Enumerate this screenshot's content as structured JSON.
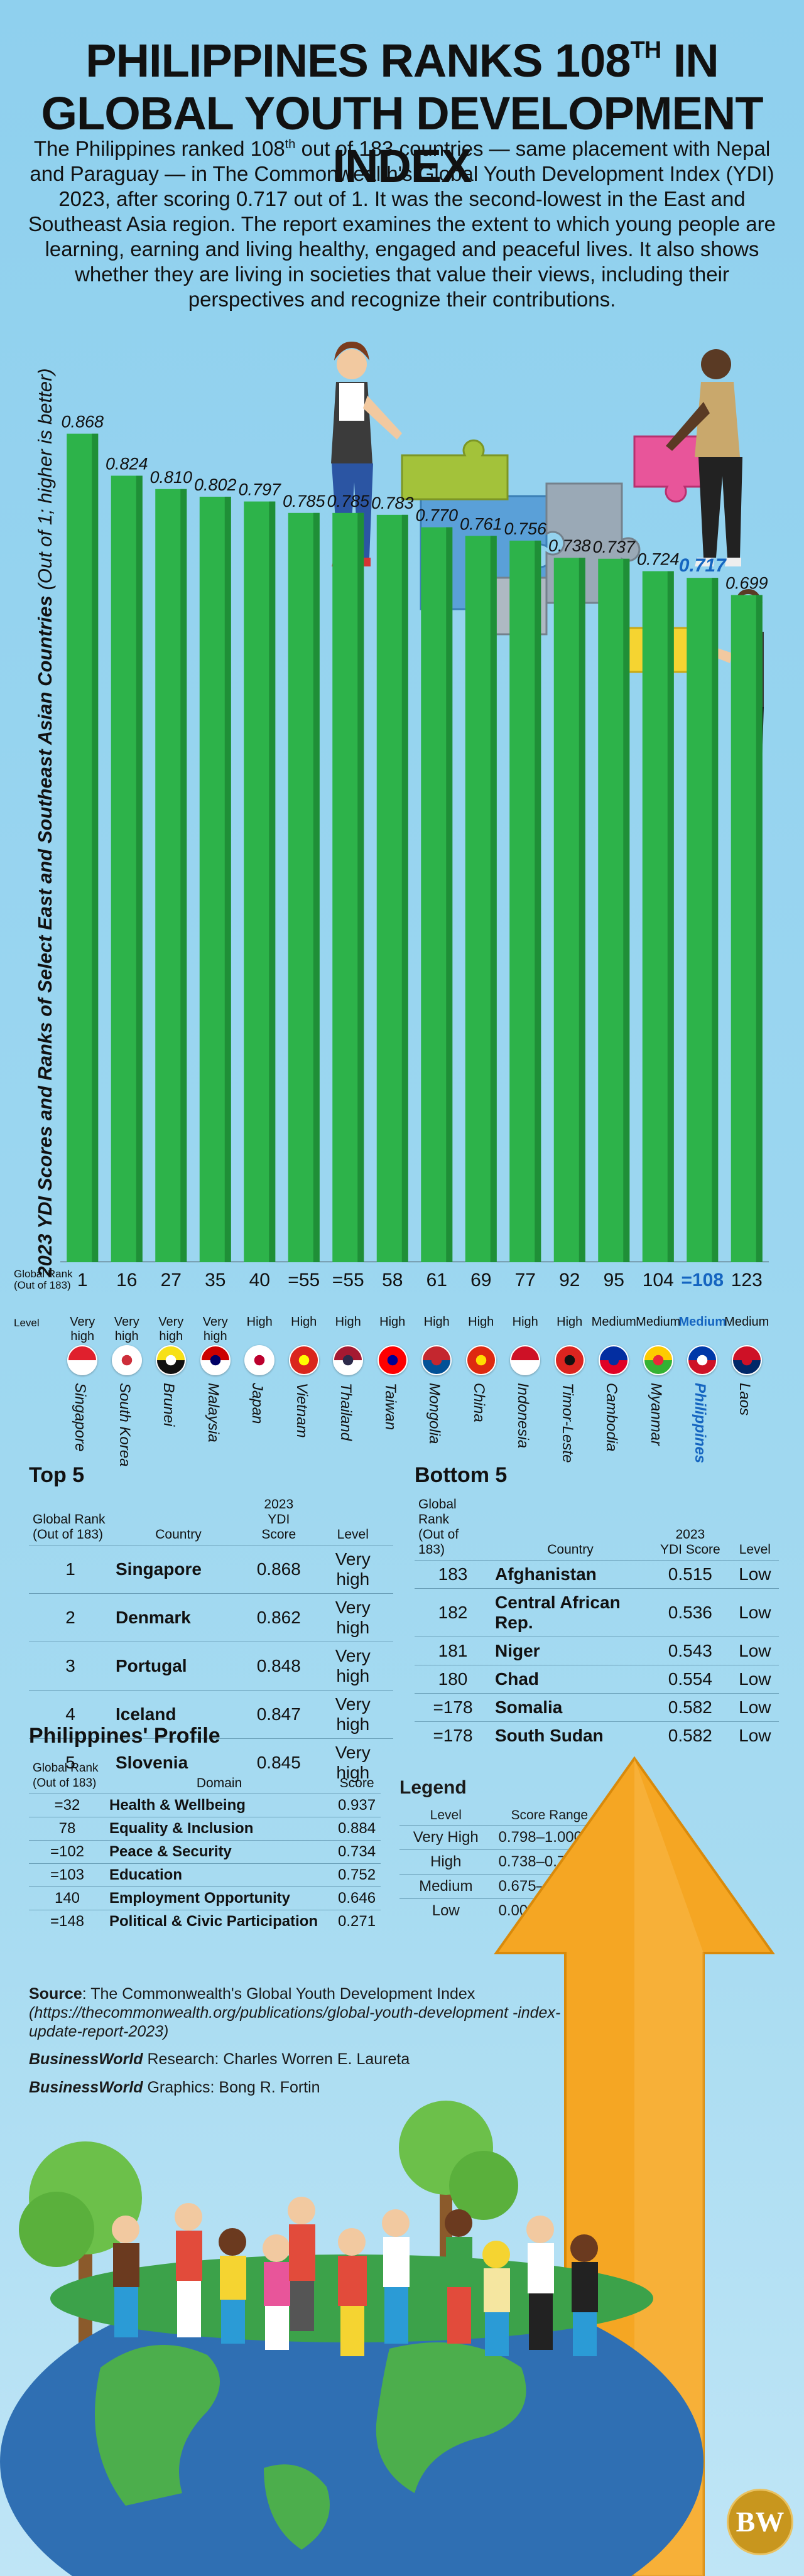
{
  "header": {
    "title_line1": "PHILIPPINES RANKS 108",
    "title_sup": "TH",
    "title_line1_end": " IN",
    "title_line2": "GLOBAL YOUTH DEVELOPMENT INDEX",
    "intro_part1": "The Philippines ranked 108",
    "intro_sup": "th",
    "intro_part2": " out of 183 countries — same placement with Nepal and Paraguay — in The Commonwealth's Global Youth Development Index (YDI) 2023, after scoring 0.717 out of 1. It was the second-lowest in the East and Southeast Asia region. The report examines the extent to which young people are learning, earning and living healthy, engaged and peaceful lives. It also shows whether they are living in societies that value their views, including their perspectives and recognize their contributions."
  },
  "colors": {
    "bar": "#2db34a",
    "bar_dark": "#1f8f37",
    "highlight": "#1565c0",
    "arrow": "#f5a623"
  },
  "chart_data": {
    "type": "bar",
    "ylabel": "2023 YDI Scores and Ranks of Select East and Southeast Asian Countries",
    "ylabel_sub": "(Out of 1; higher is better)",
    "ylim": [
      0,
      1
    ],
    "highlight_category": "Philippines",
    "row_labels": {
      "rank": "Global Rank",
      "rank_sub": "(Out of 183)",
      "level": "Level"
    },
    "categories": [
      "Singapore",
      "South Korea",
      "Brunei",
      "Malaysia",
      "Japan",
      "Vietnam",
      "Thailand",
      "Taiwan",
      "Mongolia",
      "China",
      "Indonesia",
      "Timor-Leste",
      "Cambodia",
      "Myanmar",
      "Philippines",
      "Laos"
    ],
    "values": [
      0.868,
      0.824,
      0.81,
      0.802,
      0.797,
      0.785,
      0.785,
      0.783,
      0.77,
      0.761,
      0.756,
      0.738,
      0.737,
      0.724,
      0.717,
      0.699
    ],
    "value_labels": [
      "0.868",
      "0.824",
      "0.810",
      "0.802",
      "0.797",
      "0.785",
      "0.785",
      "0.783",
      "0.770",
      "0.761",
      "0.756",
      "0.738",
      "0.737",
      "0.724",
      "0.717",
      "0.699"
    ],
    "ranks": [
      "1",
      "16",
      "27",
      "35",
      "40",
      "=55",
      "=55",
      "58",
      "61",
      "69",
      "77",
      "92",
      "95",
      "104",
      "=108",
      "123"
    ],
    "levels": [
      "Very high",
      "Very high",
      "Very high",
      "Very high",
      "High",
      "High",
      "High",
      "High",
      "High",
      "High",
      "High",
      "High",
      "Medium",
      "Medium",
      "Medium",
      "Medium"
    ],
    "flag_icons": [
      "singapore-flag-icon",
      "south-korea-flag-icon",
      "brunei-flag-icon",
      "malaysia-flag-icon",
      "japan-flag-icon",
      "vietnam-flag-icon",
      "thailand-flag-icon",
      "taiwan-flag-icon",
      "mongolia-flag-icon",
      "china-flag-icon",
      "indonesia-flag-icon",
      "timor-leste-flag-icon",
      "cambodia-flag-icon",
      "myanmar-flag-icon",
      "philippines-flag-icon",
      "laos-flag-icon"
    ]
  },
  "top5": {
    "title": "Top 5",
    "headers": {
      "rank": "Global Rank",
      "rank_sub": "(Out of 183)",
      "country": "Country",
      "score": "2023",
      "score_sub": "YDI Score",
      "level": "Level"
    },
    "rows": [
      {
        "rank": "1",
        "country": "Singapore",
        "score": "0.868",
        "level": "Very high"
      },
      {
        "rank": "2",
        "country": "Denmark",
        "score": "0.862",
        "level": "Very high"
      },
      {
        "rank": "3",
        "country": "Portugal",
        "score": "0.848",
        "level": "Very high"
      },
      {
        "rank": "4",
        "country": "Iceland",
        "score": "0.847",
        "level": "Very high"
      },
      {
        "rank": "5",
        "country": "Slovenia",
        "score": "0.845",
        "level": "Very high"
      }
    ]
  },
  "bottom5": {
    "title": "Bottom 5",
    "headers": {
      "rank": "Global Rank",
      "rank_sub": "(Out of 183)",
      "country": "Country",
      "score": "2023",
      "score_sub": "YDI Score",
      "level": "Level"
    },
    "rows": [
      {
        "rank": "183",
        "country": "Afghanistan",
        "score": "0.515",
        "level": "Low"
      },
      {
        "rank": "182",
        "country": "Central African Rep.",
        "score": "0.536",
        "level": "Low"
      },
      {
        "rank": "181",
        "country": "Niger",
        "score": "0.543",
        "level": "Low"
      },
      {
        "rank": "180",
        "country": "Chad",
        "score": "0.554",
        "level": "Low"
      },
      {
        "rank": "=178",
        "country": "Somalia",
        "score": "0.582",
        "level": "Low"
      },
      {
        "rank": "=178",
        "country": "South Sudan",
        "score": "0.582",
        "level": "Low"
      }
    ]
  },
  "profile": {
    "title": "Philippines' Profile",
    "headers": {
      "rank": "Global Rank",
      "rank_sub": "(Out of 183)",
      "domain": "Domain",
      "score": "Score"
    },
    "rows": [
      {
        "rank": "=32",
        "domain": "Health & Wellbeing",
        "score": "0.937"
      },
      {
        "rank": "78",
        "domain": "Equality & Inclusion",
        "score": "0.884"
      },
      {
        "rank": "=102",
        "domain": "Peace & Security",
        "score": "0.734"
      },
      {
        "rank": "=103",
        "domain": "Education",
        "score": "0.752"
      },
      {
        "rank": "140",
        "domain": "Employment Opportunity",
        "score": "0.646"
      },
      {
        "rank": "=148",
        "domain": "Political & Civic Participation",
        "score": "0.271"
      }
    ]
  },
  "legend": {
    "title": "Legend",
    "headers": {
      "level": "Level",
      "range": "Score Range"
    },
    "rows": [
      {
        "level": "Very High",
        "range": "0.798–1.000"
      },
      {
        "level": "High",
        "range": "0.738–0.798"
      },
      {
        "level": "Medium",
        "range": "0.675–0.738"
      },
      {
        "level": "Low",
        "range": "0.000–0.675"
      }
    ]
  },
  "footer": {
    "source_label": "Source",
    "source_text": ": The Commonwealth's Global Youth Development Index",
    "source_url": "(https://thecommonwealth.org/publications/global-youth-development -index-update-report-2023)",
    "research_brand": "BusinessWorld",
    "research_text": " Research: Charles Worren E. Laureta",
    "graphics_brand": "BusinessWorld",
    "graphics_text": " Graphics: Bong R. Fortin",
    "logo_text": "BW"
  }
}
